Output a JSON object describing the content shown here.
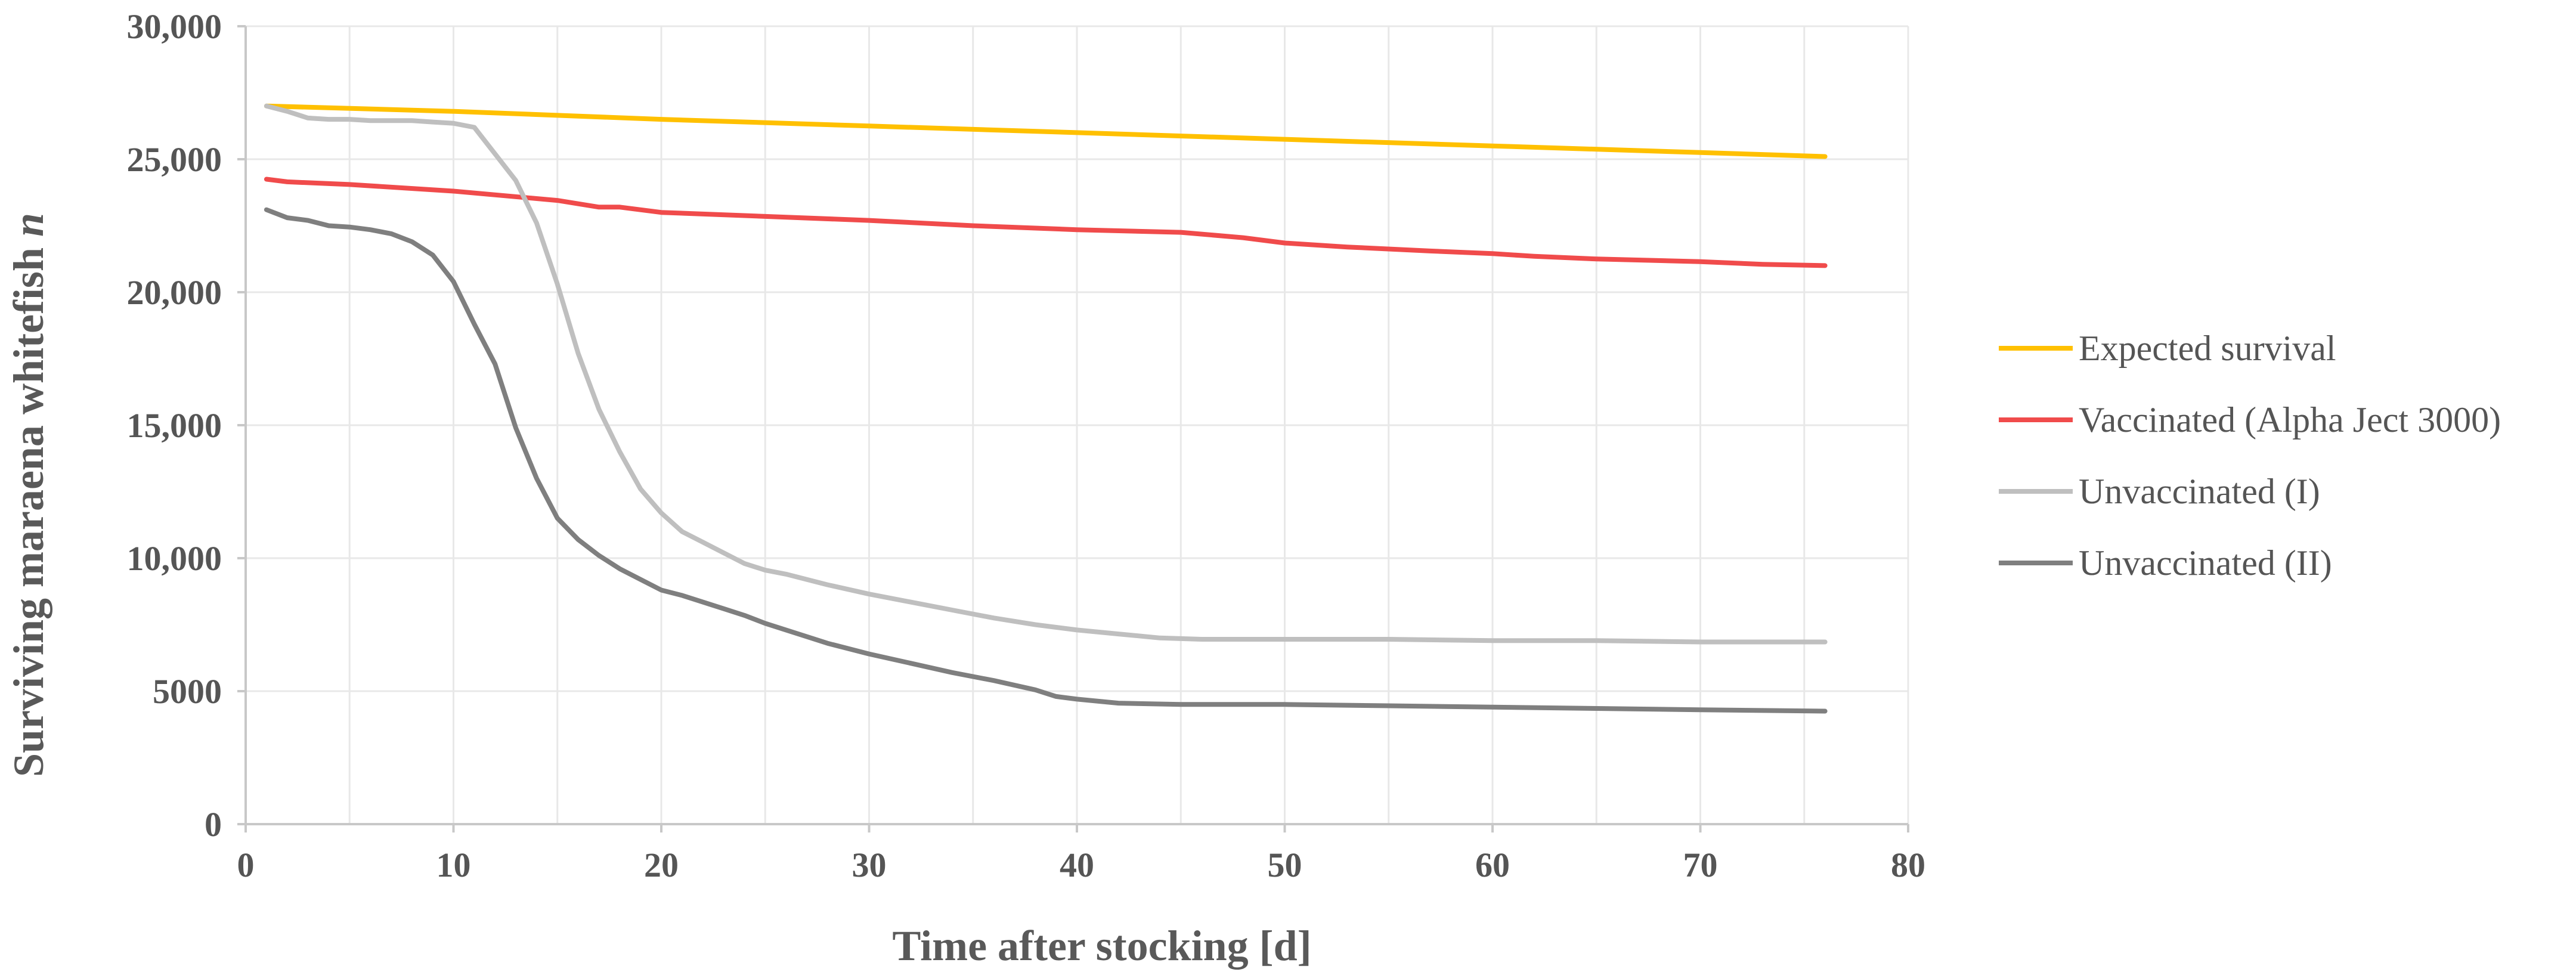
{
  "chart_data": {
    "type": "line",
    "title": "",
    "xlabel": "Time after stocking [d]",
    "ylabel_main": "Surviving maraena whitefish ",
    "ylabel_italic": "n",
    "xlim": [
      0,
      80
    ],
    "ylim": [
      0,
      30000
    ],
    "x_ticks": [
      0,
      10,
      20,
      30,
      40,
      50,
      60,
      70,
      80
    ],
    "x_tick_labels": [
      "0",
      "10",
      "20",
      "30",
      "40",
      "50",
      "60",
      "70",
      "80"
    ],
    "y_ticks": [
      0,
      5000,
      10000,
      15000,
      20000,
      25000,
      30000
    ],
    "y_tick_labels": [
      "0",
      "5000",
      "10,000",
      "15,000",
      "20,000",
      "25,000",
      "30,000"
    ],
    "grid": true,
    "legend_position": "right",
    "series": [
      {
        "name": "Expected survival",
        "color": "#FFC000",
        "points": [
          [
            1,
            27000
          ],
          [
            10,
            26800
          ],
          [
            20,
            26500
          ],
          [
            30,
            26250
          ],
          [
            40,
            26000
          ],
          [
            50,
            25750
          ],
          [
            60,
            25500
          ],
          [
            70,
            25250
          ],
          [
            76,
            25100
          ]
        ]
      },
      {
        "name": "Vaccinated (Alpha Ject 3000)",
        "color": "#F04B4B",
        "points": [
          [
            1,
            24250
          ],
          [
            2,
            24150
          ],
          [
            5,
            24050
          ],
          [
            10,
            23800
          ],
          [
            15,
            23450
          ],
          [
            17,
            23200
          ],
          [
            18,
            23200
          ],
          [
            20,
            23000
          ],
          [
            25,
            22850
          ],
          [
            30,
            22700
          ],
          [
            35,
            22500
          ],
          [
            40,
            22350
          ],
          [
            45,
            22250
          ],
          [
            48,
            22050
          ],
          [
            50,
            21850
          ],
          [
            53,
            21700
          ],
          [
            57,
            21550
          ],
          [
            60,
            21450
          ],
          [
            62,
            21350
          ],
          [
            65,
            21250
          ],
          [
            70,
            21150
          ],
          [
            73,
            21050
          ],
          [
            76,
            21000
          ]
        ]
      },
      {
        "name": "Unvaccinated (I)",
        "color": "#BFBFBF",
        "points": [
          [
            1,
            27000
          ],
          [
            2,
            26800
          ],
          [
            3,
            26550
          ],
          [
            4,
            26500
          ],
          [
            5,
            26500
          ],
          [
            6,
            26450
          ],
          [
            7,
            26450
          ],
          [
            8,
            26450
          ],
          [
            9,
            26400
          ],
          [
            10,
            26350
          ],
          [
            11,
            26200
          ],
          [
            12,
            25200
          ],
          [
            13,
            24200
          ],
          [
            14,
            22600
          ],
          [
            15,
            20300
          ],
          [
            16,
            17700
          ],
          [
            17,
            15600
          ],
          [
            18,
            14000
          ],
          [
            19,
            12600
          ],
          [
            20,
            11700
          ],
          [
            21,
            11000
          ],
          [
            22,
            10600
          ],
          [
            23,
            10200
          ],
          [
            24,
            9800
          ],
          [
            25,
            9550
          ],
          [
            26,
            9400
          ],
          [
            28,
            9000
          ],
          [
            30,
            8650
          ],
          [
            32,
            8350
          ],
          [
            34,
            8050
          ],
          [
            36,
            7750
          ],
          [
            38,
            7500
          ],
          [
            40,
            7300
          ],
          [
            42,
            7150
          ],
          [
            44,
            7000
          ],
          [
            46,
            6950
          ],
          [
            50,
            6950
          ],
          [
            55,
            6950
          ],
          [
            60,
            6900
          ],
          [
            65,
            6900
          ],
          [
            70,
            6850
          ],
          [
            76,
            6850
          ]
        ]
      },
      {
        "name": "Unvaccinated (II)",
        "color": "#7F7F7F",
        "points": [
          [
            1,
            23100
          ],
          [
            2,
            22800
          ],
          [
            3,
            22700
          ],
          [
            4,
            22500
          ],
          [
            5,
            22450
          ],
          [
            6,
            22350
          ],
          [
            7,
            22200
          ],
          [
            8,
            21900
          ],
          [
            9,
            21400
          ],
          [
            10,
            20400
          ],
          [
            11,
            18800
          ],
          [
            12,
            17300
          ],
          [
            13,
            14900
          ],
          [
            14,
            13000
          ],
          [
            15,
            11500
          ],
          [
            16,
            10700
          ],
          [
            17,
            10100
          ],
          [
            18,
            9600
          ],
          [
            19,
            9200
          ],
          [
            20,
            8800
          ],
          [
            21,
            8600
          ],
          [
            22,
            8350
          ],
          [
            23,
            8100
          ],
          [
            24,
            7850
          ],
          [
            25,
            7550
          ],
          [
            26,
            7300
          ],
          [
            27,
            7050
          ],
          [
            28,
            6800
          ],
          [
            30,
            6400
          ],
          [
            32,
            6050
          ],
          [
            34,
            5700
          ],
          [
            36,
            5400
          ],
          [
            38,
            5050
          ],
          [
            39,
            4800
          ],
          [
            40,
            4700
          ],
          [
            42,
            4550
          ],
          [
            45,
            4500
          ],
          [
            50,
            4500
          ],
          [
            55,
            4450
          ],
          [
            60,
            4400
          ],
          [
            65,
            4350
          ],
          [
            70,
            4300
          ],
          [
            76,
            4250
          ]
        ]
      }
    ]
  }
}
